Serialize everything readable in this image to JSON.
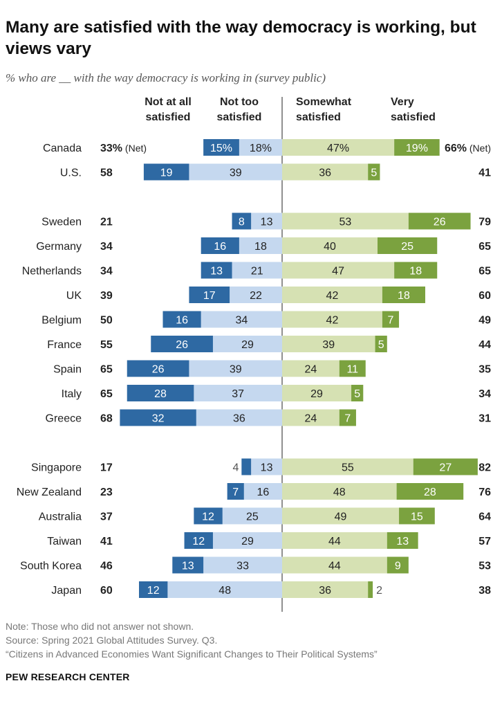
{
  "header": {
    "title": "Many are satisfied with the way democracy is working, but views vary",
    "subtitle": "% who are __ with the way democracy is working in (survey public)"
  },
  "chart_data": {
    "type": "diverging-stacked-bar",
    "categories": [
      "Not at all satisfied",
      "Not too satisfied",
      "Somewhat satisfied",
      "Very satisfied"
    ],
    "column_headers": [
      [
        "Not at all",
        "satisfied"
      ],
      [
        "Not too",
        "satisfied"
      ],
      [
        "Somewhat",
        "satisfied"
      ],
      [
        "Very",
        "satisfied"
      ]
    ],
    "colors": {
      "not_at_all": "#2e69a3",
      "not_too": "#c5d8ef",
      "somewhat": "#d6e1b3",
      "very": "#7ba23f"
    },
    "net_suffix": "(Net)",
    "groups": [
      [
        {
          "country": "Canada",
          "not_at_all": 15,
          "not_too": 18,
          "somewhat": 47,
          "very": 19,
          "net_dissatisfied": 33,
          "net_satisfied": 66,
          "labels": {
            "not_at_all": "15%",
            "not_too": "18%",
            "somewhat": "47%",
            "very": "19%"
          },
          "net_labels": {
            "dissatisfied": "33%",
            "satisfied": "66%"
          }
        },
        {
          "country": "U.S.",
          "not_at_all": 19,
          "not_too": 39,
          "somewhat": 36,
          "very": 5,
          "net_dissatisfied": 58,
          "net_satisfied": 41
        }
      ],
      [
        {
          "country": "Sweden",
          "not_at_all": 8,
          "not_too": 13,
          "somewhat": 53,
          "very": 26,
          "net_dissatisfied": 21,
          "net_satisfied": 79
        },
        {
          "country": "Germany",
          "not_at_all": 16,
          "not_too": 18,
          "somewhat": 40,
          "very": 25,
          "net_dissatisfied": 34,
          "net_satisfied": 65
        },
        {
          "country": "Netherlands",
          "not_at_all": 13,
          "not_too": 21,
          "somewhat": 47,
          "very": 18,
          "net_dissatisfied": 34,
          "net_satisfied": 65
        },
        {
          "country": "UK",
          "not_at_all": 17,
          "not_too": 22,
          "somewhat": 42,
          "very": 18,
          "net_dissatisfied": 39,
          "net_satisfied": 60
        },
        {
          "country": "Belgium",
          "not_at_all": 16,
          "not_too": 34,
          "somewhat": 42,
          "very": 7,
          "net_dissatisfied": 50,
          "net_satisfied": 49
        },
        {
          "country": "France",
          "not_at_all": 26,
          "not_too": 29,
          "somewhat": 39,
          "very": 5,
          "net_dissatisfied": 55,
          "net_satisfied": 44
        },
        {
          "country": "Spain",
          "not_at_all": 26,
          "not_too": 39,
          "somewhat": 24,
          "very": 11,
          "net_dissatisfied": 65,
          "net_satisfied": 35
        },
        {
          "country": "Italy",
          "not_at_all": 28,
          "not_too": 37,
          "somewhat": 29,
          "very": 5,
          "net_dissatisfied": 65,
          "net_satisfied": 34
        },
        {
          "country": "Greece",
          "not_at_all": 32,
          "not_too": 36,
          "somewhat": 24,
          "very": 7,
          "net_dissatisfied": 68,
          "net_satisfied": 31
        }
      ],
      [
        {
          "country": "Singapore",
          "not_at_all": 4,
          "not_too": 13,
          "somewhat": 55,
          "very": 27,
          "net_dissatisfied": 17,
          "net_satisfied": 82
        },
        {
          "country": "New Zealand",
          "not_at_all": 7,
          "not_too": 16,
          "somewhat": 48,
          "very": 28,
          "net_dissatisfied": 23,
          "net_satisfied": 76
        },
        {
          "country": "Australia",
          "not_at_all": 12,
          "not_too": 25,
          "somewhat": 49,
          "very": 15,
          "net_dissatisfied": 37,
          "net_satisfied": 64
        },
        {
          "country": "Taiwan",
          "not_at_all": 12,
          "not_too": 29,
          "somewhat": 44,
          "very": 13,
          "net_dissatisfied": 41,
          "net_satisfied": 57
        },
        {
          "country": "South Korea",
          "not_at_all": 13,
          "not_too": 33,
          "somewhat": 44,
          "very": 9,
          "net_dissatisfied": 46,
          "net_satisfied": 53
        },
        {
          "country": "Japan",
          "not_at_all": 12,
          "not_too": 48,
          "somewhat": 36,
          "very": 2,
          "net_dissatisfied": 60,
          "net_satisfied": 38
        }
      ]
    ]
  },
  "footer": {
    "note": "Note: Those who did not answer not shown.",
    "source": "Source: Spring 2021 Global Attitudes Survey. Q3.",
    "report": "“Citizens in Advanced Economies Want Significant Changes to Their Political Systems”",
    "brand": "PEW RESEARCH CENTER"
  }
}
